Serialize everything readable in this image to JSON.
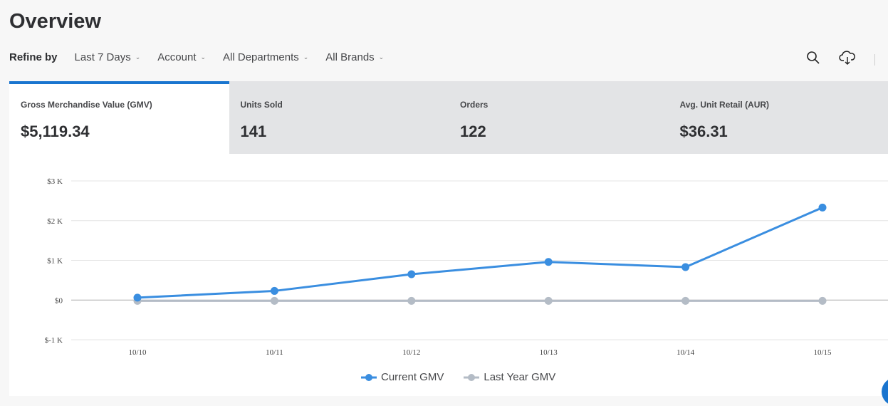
{
  "header": {
    "title": "Overview"
  },
  "filters": {
    "label": "Refine by",
    "items": [
      "Last 7 Days",
      "Account",
      "All Departments",
      "All Brands"
    ]
  },
  "toolbar": {
    "icons": [
      "search-icon",
      "cloud-download-icon"
    ]
  },
  "metrics": [
    {
      "label": "Gross Merchandise Value (GMV)",
      "value": "$5,119.34"
    },
    {
      "label": "Units Sold",
      "value": "141"
    },
    {
      "label": "Orders",
      "value": "122"
    },
    {
      "label": "Avg. Unit Retail (AUR)",
      "value": "$36.31"
    }
  ],
  "colors": {
    "accent": "#1a75cf",
    "current": "#3a8ee0",
    "last_year": "#b4bcc6"
  },
  "chart_data": {
    "type": "line",
    "x": [
      "10/10",
      "10/11",
      "10/12",
      "10/13",
      "10/14",
      "10/15"
    ],
    "y_ticks": [
      {
        "v": 3000,
        "label": "$3 K"
      },
      {
        "v": 2000,
        "label": "$2 K"
      },
      {
        "v": 1000,
        "label": "$1 K"
      },
      {
        "v": 0,
        "label": "$0"
      },
      {
        "v": -1000,
        "label": "$-1 K"
      }
    ],
    "ylim": [
      -1000,
      3000
    ],
    "series": [
      {
        "name": "Current GMV",
        "values": [
          60,
          230,
          650,
          960,
          830,
          2330
        ]
      },
      {
        "name": "Last Year GMV",
        "values": [
          -20,
          -20,
          -20,
          -20,
          -20,
          -20
        ]
      }
    ],
    "legend": "bottom"
  }
}
